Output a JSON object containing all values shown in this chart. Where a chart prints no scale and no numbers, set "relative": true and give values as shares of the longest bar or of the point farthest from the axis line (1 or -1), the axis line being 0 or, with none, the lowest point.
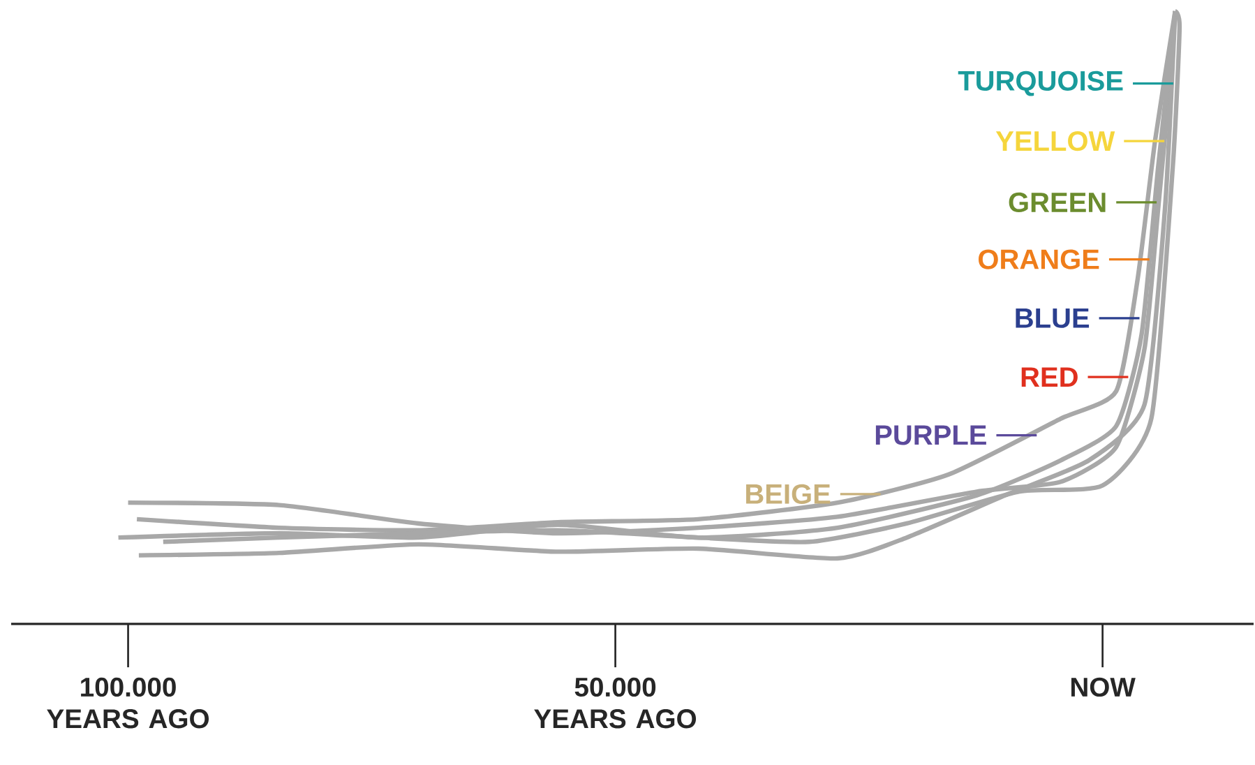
{
  "chart_data": {
    "type": "line",
    "relative": true,
    "xlim": [
      -112000,
      15500
    ],
    "xticks": [
      {
        "value": -100000,
        "label": "100.000 YEARS AGO"
      },
      {
        "value": -50000,
        "label": "50.000 YEARS AGO"
      },
      {
        "value": 0,
        "label": "NOW"
      }
    ],
    "series": [
      {
        "color": "#a8a8a8",
        "x": [
          -100000,
          -84500,
          -70200,
          -55900,
          -41500,
          -27200,
          -12900,
          -4300,
          1400,
          4300,
          5700,
          6900,
          7450
        ],
        "values": [
          0.198,
          0.194,
          0.164,
          0.148,
          0.157,
          0.175,
          0.216,
          0.232,
          0.289,
          0.449,
          0.677,
          0.882,
          1.0
        ]
      },
      {
        "color": "#a8a8a8",
        "x": [
          -99100,
          -84500,
          -70200,
          -55900,
          -41500,
          -27200,
          -15800,
          -4300,
          1400,
          3600,
          5400,
          7450
        ],
        "values": [
          0.171,
          0.157,
          0.153,
          0.166,
          0.171,
          0.198,
          0.244,
          0.335,
          0.38,
          0.563,
          0.79,
          1.0
        ]
      },
      {
        "color": "#a8a8a8",
        "x": [
          -101000,
          -84500,
          -70200,
          -55900,
          -41500,
          -27200,
          -12900,
          -4300,
          1400,
          4000,
          5700,
          7450
        ],
        "values": [
          0.141,
          0.148,
          0.141,
          0.162,
          0.141,
          0.157,
          0.21,
          0.267,
          0.323,
          0.472,
          0.745,
          1.0
        ]
      },
      {
        "color": "#a8a8a8",
        "x": [
          -98900,
          -84500,
          -70200,
          -55900,
          -41500,
          -27200,
          -20100,
          -10000,
          -1400,
          4300,
          6400,
          7450
        ],
        "values": [
          0.112,
          0.116,
          0.13,
          0.118,
          0.123,
          0.107,
          0.141,
          0.21,
          0.267,
          0.358,
          0.677,
          1.0
        ]
      },
      {
        "color": "#a8a8a8",
        "x": [
          -96400,
          -84500,
          -70200,
          -55900,
          -41500,
          -30100,
          -20100,
          -8600,
          0,
          5000,
          7200,
          7900,
          7450
        ],
        "values": [
          0.134,
          0.141,
          0.148,
          0.153,
          0.141,
          0.134,
          0.164,
          0.216,
          0.226,
          0.335,
          0.745,
          0.973,
          1.0
        ]
      }
    ],
    "ref_lines": [
      {
        "axis": "y",
        "value": 0.212,
        "label": "BEIGE",
        "color": "#c8b07a"
      },
      {
        "axis": "y",
        "value": 0.308,
        "label": "PURPLE",
        "color": "#5b4a9b"
      },
      {
        "axis": "y",
        "value": 0.403,
        "label": "RED",
        "color": "#e0301e"
      },
      {
        "axis": "y",
        "value": 0.499,
        "label": "BLUE",
        "color": "#2b3f8f"
      },
      {
        "axis": "y",
        "value": 0.595,
        "label": "ORANGE",
        "color": "#ef7d1a"
      },
      {
        "axis": "y",
        "value": 0.688,
        "label": "GREEN",
        "color": "#6b8c2e"
      },
      {
        "axis": "y",
        "value": 0.788,
        "label": "YELLOW",
        "color": "#f5d53c"
      },
      {
        "axis": "y",
        "value": 0.882,
        "label": "TURQUOISE",
        "color": "#1a9b9b"
      }
    ]
  }
}
